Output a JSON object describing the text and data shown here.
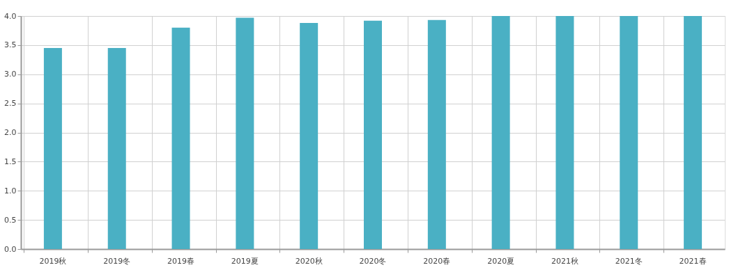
{
  "chart_data": {
    "type": "bar",
    "categories": [
      "2019秋",
      "2019冬",
      "2019春",
      "2019夏",
      "2020秋",
      "2020冬",
      "2020春",
      "2020夏",
      "2021秋",
      "2021冬",
      "2021春"
    ],
    "values": [
      3.45,
      3.45,
      3.8,
      3.97,
      3.88,
      3.92,
      3.93,
      4.0,
      4.0,
      4.0,
      4.0
    ],
    "color": "#4ab0c4",
    "ylim": [
      0,
      4.0
    ],
    "yticks": [
      {
        "value": 0,
        "label": "0.0"
      },
      0.5,
      {
        "value": 1,
        "label": "1.0"
      },
      1.5,
      {
        "value": 2,
        "label": "2.0"
      },
      2.5,
      {
        "value": 3,
        "label": "3.0"
      },
      3.5,
      {
        "value": 4,
        "label": "4.0"
      }
    ],
    "grid": true
  }
}
